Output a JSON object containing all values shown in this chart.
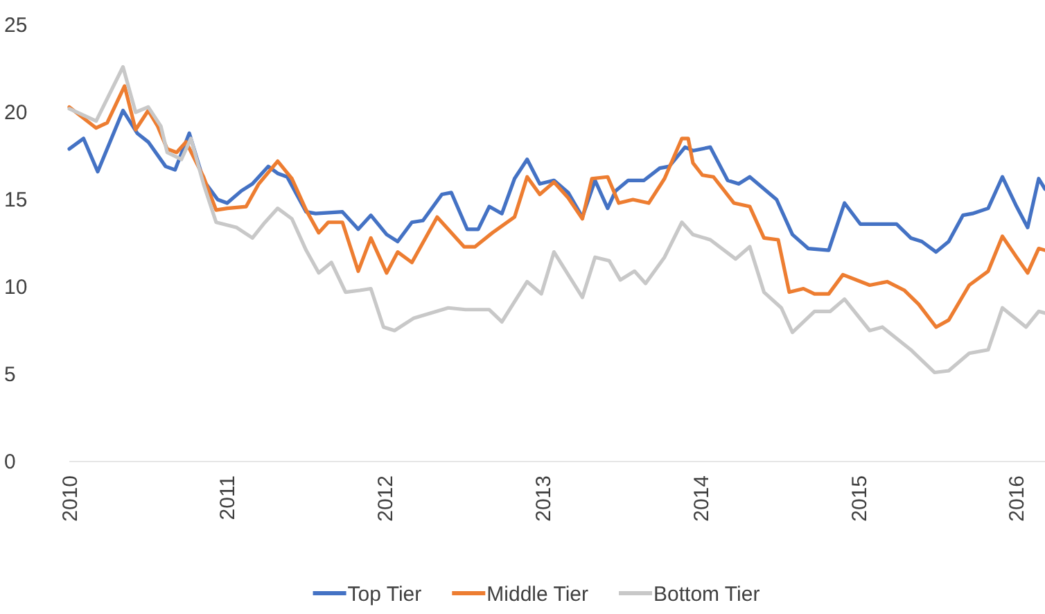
{
  "chart_data": {
    "type": "line",
    "xlim": [
      2010,
      2016.18
    ],
    "xticks": [
      2010,
      2011,
      2012,
      2013,
      2014,
      2015,
      2016
    ],
    "ylim": [
      0,
      25
    ],
    "yticks": [
      0,
      5,
      10,
      15,
      20,
      25
    ],
    "grid": false,
    "legend": "bottom",
    "line_style": "solid",
    "marker": "none",
    "series": [
      {
        "name": "Top Tier",
        "color": "#4472c4",
        "x": [
          2010.0,
          2010.09,
          2010.18,
          2010.34,
          2010.43,
          2010.5,
          2010.61,
          2010.67,
          2010.76,
          2010.85,
          2010.94,
          2011.0,
          2011.09,
          2011.16,
          2011.26,
          2011.32,
          2011.38,
          2011.5,
          2011.56,
          2011.73,
          2011.83,
          2011.91,
          2012.01,
          2012.08,
          2012.17,
          2012.24,
          2012.36,
          2012.42,
          2012.52,
          2012.59,
          2012.66,
          2012.74,
          2012.82,
          2012.9,
          2012.98,
          2013.07,
          2013.16,
          2013.25,
          2013.33,
          2013.41,
          2013.46,
          2013.54,
          2013.64,
          2013.74,
          2013.8,
          2013.9,
          2013.95,
          2014.06,
          2014.17,
          2014.24,
          2014.31,
          2014.48,
          2014.58,
          2014.68,
          2014.81,
          2014.91,
          2015.01,
          2015.15,
          2015.24,
          2015.33,
          2015.4,
          2015.49,
          2015.57,
          2015.66,
          2015.72,
          2015.82,
          2015.91,
          2016.0,
          2016.07,
          2016.14,
          2016.18
        ],
        "values": [
          17.9,
          18.5,
          16.6,
          20.1,
          18.8,
          18.3,
          16.9,
          16.7,
          18.8,
          16.1,
          15.0,
          14.8,
          15.5,
          15.9,
          16.9,
          16.5,
          16.3,
          14.3,
          14.2,
          14.3,
          13.3,
          14.1,
          13.0,
          12.6,
          13.7,
          13.8,
          15.3,
          15.4,
          13.3,
          13.3,
          14.6,
          14.2,
          16.2,
          17.3,
          15.9,
          16.1,
          15.4,
          14.0,
          16.1,
          14.5,
          15.5,
          16.1,
          16.1,
          16.8,
          16.9,
          18.0,
          17.8,
          18.0,
          16.1,
          15.9,
          16.3,
          15.0,
          13.0,
          12.2,
          12.1,
          14.8,
          13.6,
          13.6,
          13.6,
          12.8,
          12.6,
          12.0,
          12.6,
          14.1,
          14.2,
          14.5,
          16.3,
          14.6,
          13.4,
          16.2,
          15.6
        ]
      },
      {
        "name": "Middle Tier",
        "color": "#ed7d31",
        "x": [
          2010.0,
          2010.17,
          2010.24,
          2010.35,
          2010.42,
          2010.5,
          2010.56,
          2010.62,
          2010.68,
          2010.74,
          2010.85,
          2010.93,
          2011.0,
          2011.12,
          2011.2,
          2011.32,
          2011.41,
          2011.5,
          2011.58,
          2011.64,
          2011.73,
          2011.83,
          2011.91,
          2012.01,
          2012.08,
          2012.17,
          2012.33,
          2012.5,
          2012.57,
          2012.68,
          2012.82,
          2012.9,
          2012.98,
          2013.07,
          2013.16,
          2013.25,
          2013.31,
          2013.41,
          2013.48,
          2013.57,
          2013.67,
          2013.77,
          2013.88,
          2013.92,
          2013.95,
          2014.01,
          2014.08,
          2014.21,
          2014.31,
          2014.4,
          2014.49,
          2014.56,
          2014.65,
          2014.72,
          2014.81,
          2014.9,
          2015.07,
          2015.18,
          2015.29,
          2015.38,
          2015.49,
          2015.57,
          2015.7,
          2015.82,
          2015.91,
          2016.0,
          2016.07,
          2016.14,
          2016.18
        ],
        "values": [
          20.3,
          19.1,
          19.4,
          21.5,
          19.0,
          20.1,
          19.2,
          17.9,
          17.7,
          18.3,
          16.3,
          14.4,
          14.5,
          14.6,
          15.9,
          17.2,
          16.2,
          14.4,
          13.1,
          13.7,
          13.7,
          10.9,
          12.8,
          10.8,
          12.0,
          11.4,
          14.0,
          12.3,
          12.3,
          13.1,
          14.0,
          16.3,
          15.3,
          16.0,
          15.1,
          13.9,
          16.2,
          16.3,
          14.8,
          15.0,
          14.8,
          16.2,
          18.5,
          18.5,
          17.1,
          16.4,
          16.3,
          14.8,
          14.6,
          12.8,
          12.7,
          9.7,
          9.9,
          9.6,
          9.6,
          10.7,
          10.1,
          10.3,
          9.8,
          9.0,
          7.7,
          8.1,
          10.1,
          10.9,
          12.9,
          11.7,
          10.8,
          12.2,
          12.1
        ]
      },
      {
        "name": "Bottom Tier",
        "color": "#c8c8c8",
        "x": [
          2010.0,
          2010.17,
          2010.34,
          2010.42,
          2010.5,
          2010.58,
          2010.62,
          2010.71,
          2010.77,
          2010.85,
          2010.93,
          2011.06,
          2011.16,
          2011.23,
          2011.32,
          2011.41,
          2011.5,
          2011.58,
          2011.66,
          2011.75,
          2011.84,
          2011.91,
          2011.99,
          2012.06,
          2012.18,
          2012.4,
          2012.51,
          2012.66,
          2012.74,
          2012.9,
          2012.99,
          2013.07,
          2013.16,
          2013.25,
          2013.33,
          2013.42,
          2013.49,
          2013.58,
          2013.65,
          2013.77,
          2013.88,
          2013.95,
          2014.06,
          2014.22,
          2014.31,
          2014.4,
          2014.51,
          2014.58,
          2014.72,
          2014.82,
          2014.91,
          2015.07,
          2015.15,
          2015.33,
          2015.48,
          2015.57,
          2015.7,
          2015.82,
          2015.91,
          2016.06,
          2016.14,
          2016.18
        ],
        "values": [
          20.2,
          19.5,
          22.6,
          20.0,
          20.3,
          19.2,
          17.7,
          17.3,
          18.5,
          15.9,
          13.7,
          13.4,
          12.8,
          13.6,
          14.5,
          13.9,
          12.1,
          10.8,
          11.4,
          9.7,
          9.8,
          9.9,
          7.7,
          7.5,
          8.2,
          8.8,
          8.7,
          8.7,
          8.0,
          10.3,
          9.6,
          12.0,
          10.7,
          9.4,
          11.7,
          11.5,
          10.4,
          10.9,
          10.2,
          11.7,
          13.7,
          13.0,
          12.7,
          11.6,
          12.3,
          9.7,
          8.8,
          7.4,
          8.6,
          8.6,
          9.3,
          7.5,
          7.7,
          6.4,
          5.1,
          5.2,
          6.2,
          6.4,
          8.8,
          7.7,
          8.6,
          8.5
        ]
      }
    ]
  }
}
